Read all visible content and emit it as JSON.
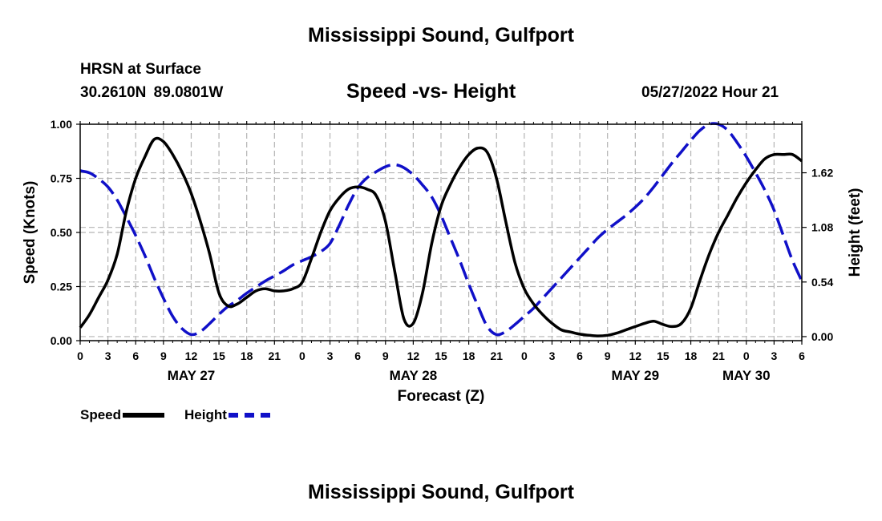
{
  "header": {
    "title": "Mississippi Sound, Gulfport",
    "station": "HRSN at Surface",
    "coords": "30.2610N  89.0801W",
    "chart_title": "Speed -vs- Height",
    "datetime": "05/27/2022 Hour 21"
  },
  "legend": {
    "speed_label": "Speed",
    "height_label": "Height"
  },
  "footer": {
    "title": "Mississippi Sound, Gulfport"
  },
  "colors": {
    "speed": "#000000",
    "height": "#1010c8",
    "grid": "#b4b4b4"
  },
  "chart_data": {
    "type": "line",
    "title": "Speed -vs- Height",
    "xlabel": "Forecast (Z)",
    "ylabel": "Speed (Knots)",
    "y2label": "Height (feet)",
    "x_unit": "hours since May 27 00Z",
    "xlim": [
      0,
      78
    ],
    "ylim": [
      0,
      1.0
    ],
    "y2lim": [
      -0.04,
      2.1
    ],
    "grid": true,
    "x_ticks": [
      {
        "x": 0,
        "label": "0"
      },
      {
        "x": 3,
        "label": "3"
      },
      {
        "x": 6,
        "label": "6"
      },
      {
        "x": 9,
        "label": "9"
      },
      {
        "x": 12,
        "label": "12"
      },
      {
        "x": 15,
        "label": "15"
      },
      {
        "x": 18,
        "label": "18"
      },
      {
        "x": 21,
        "label": "21"
      },
      {
        "x": 24,
        "label": "0"
      },
      {
        "x": 27,
        "label": "3"
      },
      {
        "x": 30,
        "label": "6"
      },
      {
        "x": 33,
        "label": "9"
      },
      {
        "x": 36,
        "label": "12"
      },
      {
        "x": 39,
        "label": "15"
      },
      {
        "x": 42,
        "label": "18"
      },
      {
        "x": 45,
        "label": "21"
      },
      {
        "x": 48,
        "label": "0"
      },
      {
        "x": 51,
        "label": "3"
      },
      {
        "x": 54,
        "label": "6"
      },
      {
        "x": 57,
        "label": "9"
      },
      {
        "x": 60,
        "label": "12"
      },
      {
        "x": 63,
        "label": "15"
      },
      {
        "x": 66,
        "label": "18"
      },
      {
        "x": 69,
        "label": "21"
      },
      {
        "x": 72,
        "label": "0"
      },
      {
        "x": 75,
        "label": "3"
      },
      {
        "x": 78,
        "label": "6"
      }
    ],
    "date_labels": [
      {
        "x": 12,
        "label": "MAY 27"
      },
      {
        "x": 36,
        "label": "MAY 28"
      },
      {
        "x": 60,
        "label": "MAY 29"
      },
      {
        "x": 72,
        "label": "MAY 30"
      }
    ],
    "y_ticks": [
      {
        "v": 0,
        "label": "0.00"
      },
      {
        "v": 0.25,
        "label": "0.25"
      },
      {
        "v": 0.5,
        "label": "0.50"
      },
      {
        "v": 0.75,
        "label": "0.75"
      },
      {
        "v": 1.0,
        "label": "1.00"
      }
    ],
    "y2_ticks": [
      {
        "v": 0,
        "label": "0.00"
      },
      {
        "v": 0.54,
        "label": "0.54"
      },
      {
        "v": 1.08,
        "label": "1.08"
      },
      {
        "v": 1.62,
        "label": "1.62"
      }
    ],
    "series": [
      {
        "name": "Speed",
        "axis": "left",
        "style": "solid",
        "x": [
          0,
          1,
          2,
          3,
          4,
          5,
          6,
          7,
          8,
          9,
          10,
          11,
          12,
          13,
          14,
          15,
          16,
          17,
          18,
          19,
          20,
          21,
          22,
          23,
          24,
          25,
          26,
          27,
          28,
          29,
          30,
          31,
          32,
          33,
          34,
          35,
          36,
          37,
          38,
          39,
          40,
          41,
          42,
          43,
          44,
          45,
          46,
          47,
          48,
          49,
          50,
          51,
          52,
          53,
          54,
          55,
          56,
          57,
          58,
          59,
          60,
          61,
          62,
          63,
          64,
          65,
          66,
          67,
          68,
          69,
          70,
          71,
          72,
          73,
          74,
          75,
          76,
          77,
          78
        ],
        "values": [
          0.06,
          0.12,
          0.2,
          0.28,
          0.4,
          0.6,
          0.75,
          0.85,
          0.93,
          0.92,
          0.86,
          0.78,
          0.68,
          0.55,
          0.4,
          0.22,
          0.16,
          0.17,
          0.2,
          0.23,
          0.24,
          0.23,
          0.23,
          0.24,
          0.27,
          0.38,
          0.5,
          0.6,
          0.66,
          0.7,
          0.71,
          0.7,
          0.67,
          0.55,
          0.32,
          0.1,
          0.08,
          0.22,
          0.45,
          0.62,
          0.72,
          0.8,
          0.86,
          0.89,
          0.87,
          0.75,
          0.55,
          0.36,
          0.24,
          0.17,
          0.12,
          0.08,
          0.05,
          0.04,
          0.03,
          0.025,
          0.022,
          0.025,
          0.035,
          0.05,
          0.065,
          0.08,
          0.09,
          0.075,
          0.065,
          0.08,
          0.15,
          0.28,
          0.4,
          0.5,
          0.58,
          0.66,
          0.73,
          0.79,
          0.84,
          0.86,
          0.86,
          0.86,
          0.83
        ]
      },
      {
        "name": "Height",
        "axis": "right",
        "style": "dashed",
        "x": [
          0,
          1,
          2,
          3,
          4,
          5,
          6,
          7,
          8,
          9,
          10,
          11,
          12,
          13,
          14,
          15,
          16,
          17,
          18,
          19,
          20,
          21,
          22,
          23,
          24,
          25,
          26,
          27,
          28,
          29,
          30,
          31,
          32,
          33,
          34,
          35,
          36,
          37,
          38,
          39,
          40,
          41,
          42,
          43,
          44,
          45,
          46,
          47,
          48,
          49,
          50,
          51,
          52,
          53,
          54,
          55,
          56,
          57,
          58,
          59,
          60,
          61,
          62,
          63,
          64,
          65,
          66,
          67,
          68,
          69,
          70,
          71,
          72,
          73,
          74,
          75,
          76,
          77,
          78
        ],
        "values": [
          1.64,
          1.62,
          1.56,
          1.48,
          1.35,
          1.18,
          1.0,
          0.8,
          0.58,
          0.38,
          0.2,
          0.08,
          0.02,
          0.05,
          0.13,
          0.22,
          0.3,
          0.36,
          0.43,
          0.49,
          0.55,
          0.6,
          0.65,
          0.71,
          0.75,
          0.79,
          0.84,
          0.92,
          1.1,
          1.3,
          1.47,
          1.57,
          1.63,
          1.68,
          1.7,
          1.67,
          1.6,
          1.5,
          1.38,
          1.2,
          0.98,
          0.76,
          0.52,
          0.3,
          0.1,
          0.02,
          0.05,
          0.12,
          0.2,
          0.28,
          0.38,
          0.48,
          0.58,
          0.68,
          0.78,
          0.88,
          0.98,
          1.06,
          1.13,
          1.2,
          1.28,
          1.37,
          1.48,
          1.6,
          1.72,
          1.83,
          1.94,
          2.04,
          2.1,
          2.1,
          2.04,
          1.92,
          1.78,
          1.62,
          1.45,
          1.25,
          1.0,
          0.75,
          0.55
        ]
      }
    ]
  }
}
